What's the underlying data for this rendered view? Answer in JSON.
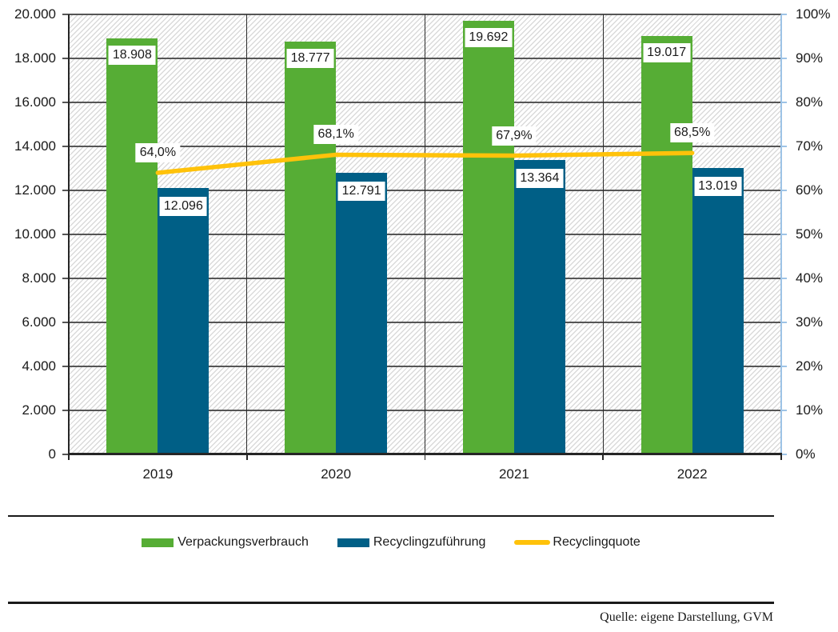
{
  "chart_data": {
    "type": "combo-bar-line",
    "categories": [
      "2019",
      "2020",
      "2021",
      "2022"
    ],
    "series": [
      {
        "name": "Verpackungsverbrauch",
        "type": "bar",
        "axis": "left",
        "color": "#56AD35",
        "values": [
          18908,
          18777,
          19692,
          19017
        ],
        "data_labels": [
          "18.908",
          "18.777",
          "19.692",
          "19.017"
        ]
      },
      {
        "name": "Recyclingzuführung",
        "type": "bar",
        "axis": "left",
        "color": "#005F86",
        "values": [
          12096,
          12791,
          13364,
          13019
        ],
        "data_labels": [
          "12.096",
          "12.791",
          "13.364",
          "13.019"
        ]
      },
      {
        "name": "Recyclingquote",
        "type": "line",
        "axis": "right",
        "color": "#FFC20A",
        "values": [
          64.0,
          68.1,
          67.9,
          68.5
        ],
        "data_labels": [
          "64,0%",
          "68,1%",
          "67,9%",
          "68,5%"
        ]
      }
    ],
    "left_axis": {
      "min": 0,
      "max": 20000,
      "step": 2000,
      "tick_labels_top_to_bottom": [
        "20.000",
        "18.000",
        "16.000",
        "14.000",
        "12.000",
        "10.000",
        "8.000",
        "6.000",
        "4.000",
        "2.000",
        "0"
      ]
    },
    "right_axis": {
      "min": 0,
      "max": 100,
      "step": 10,
      "tick_labels_top_to_bottom": [
        "100%",
        "90%",
        "80%",
        "70%",
        "60%",
        "50%",
        "40%",
        "30%",
        "20%",
        "10%",
        "0%"
      ]
    },
    "grid": true,
    "hatch_background": true,
    "legend_position": "bottom"
  },
  "colors": {
    "grid_horizontal": "#565656",
    "grid_vertical": "#2B2B2B",
    "axis_line": "#262626",
    "right_axis_line": "#9DC3E6",
    "hatch_line": "#DADADA",
    "label_background": "#FFFFFF"
  },
  "source": {
    "text": "Quelle: eigene Darstellung, GVM"
  }
}
